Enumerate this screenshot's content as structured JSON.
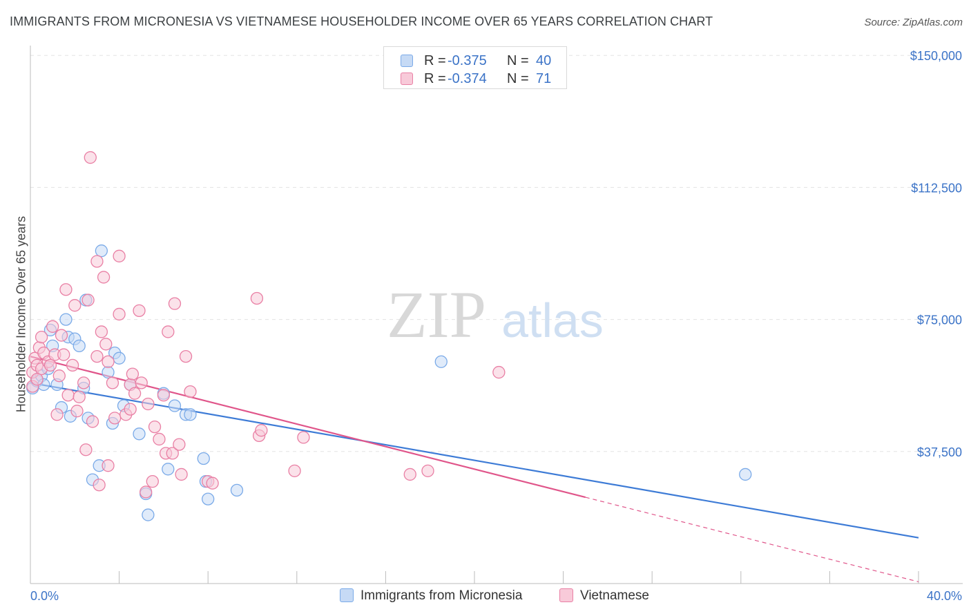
{
  "title": "IMMIGRANTS FROM MICRONESIA VS VIETNAMESE HOUSEHOLDER INCOME OVER 65 YEARS CORRELATION CHART",
  "source": "Source: ZipAtlas.com",
  "watermark": {
    "zip": "ZIP",
    "atlas": "atlas"
  },
  "legend": {
    "series": [
      {
        "name": "Immigrants from Micronesia",
        "r_label": "R =",
        "r_value": "-0.375",
        "n_label": "N =",
        "n_value": "40",
        "color": "#7aaae8",
        "fill": "#c6daf5"
      },
      {
        "name": "Vietnamese",
        "r_label": "R =",
        "r_value": "-0.374",
        "n_label": "N =",
        "n_value": "71",
        "color": "#e97fa4",
        "fill": "#f8cad9"
      }
    ]
  },
  "chart_data": {
    "type": "scatter",
    "title": "IMMIGRANTS FROM MICRONESIA VS VIETNAMESE HOUSEHOLDER INCOME OVER 65 YEARS CORRELATION CHART",
    "xlabel": "",
    "ylabel": "Householder Income Over 65 years",
    "xlim": [
      0,
      40
    ],
    "ylim": [
      0,
      152000
    ],
    "x_tick_labels": [
      "0.0%",
      "40.0%"
    ],
    "y_ticks": [
      37500,
      75000,
      112500,
      150000
    ],
    "y_tick_labels": [
      "$37,500",
      "$75,000",
      "$112,500",
      "$150,000"
    ],
    "grid": true,
    "series": [
      {
        "name": "Immigrants from Micronesia",
        "color": "#3d7bd6",
        "points": [
          [
            0.1,
            55500
          ],
          [
            0.3,
            57500
          ],
          [
            0.5,
            59000
          ],
          [
            0.6,
            56500
          ],
          [
            0.8,
            61000
          ],
          [
            0.9,
            72000
          ],
          [
            1.0,
            67500
          ],
          [
            1.2,
            56500
          ],
          [
            1.4,
            50000
          ],
          [
            1.6,
            75000
          ],
          [
            1.7,
            70000
          ],
          [
            1.8,
            47500
          ],
          [
            2.0,
            69500
          ],
          [
            2.2,
            67500
          ],
          [
            2.4,
            55500
          ],
          [
            2.5,
            80500
          ],
          [
            2.6,
            47000
          ],
          [
            2.8,
            29500
          ],
          [
            3.1,
            33500
          ],
          [
            3.2,
            94500
          ],
          [
            3.5,
            60000
          ],
          [
            3.7,
            45500
          ],
          [
            3.8,
            65500
          ],
          [
            4.0,
            64000
          ],
          [
            4.2,
            50500
          ],
          [
            4.5,
            56500
          ],
          [
            4.9,
            42500
          ],
          [
            5.2,
            25500
          ],
          [
            5.3,
            19500
          ],
          [
            6.0,
            54000
          ],
          [
            6.2,
            32500
          ],
          [
            6.5,
            50500
          ],
          [
            7.0,
            48000
          ],
          [
            7.2,
            48000
          ],
          [
            7.8,
            35500
          ],
          [
            7.9,
            29000
          ],
          [
            8.0,
            24000
          ],
          [
            9.3,
            26500
          ],
          [
            18.5,
            63000
          ],
          [
            32.2,
            31000
          ]
        ],
        "trend": {
          "x": [
            0,
            40
          ],
          "y": [
            57000,
            13000
          ]
        }
      },
      {
        "name": "Vietnamese",
        "color": "#e0558a",
        "points": [
          [
            0.1,
            60000
          ],
          [
            0.1,
            56000
          ],
          [
            0.2,
            64000
          ],
          [
            0.3,
            62000
          ],
          [
            0.4,
            67000
          ],
          [
            0.5,
            70000
          ],
          [
            0.5,
            61000
          ],
          [
            0.6,
            65500
          ],
          [
            0.8,
            63000
          ],
          [
            0.9,
            62000
          ],
          [
            1.0,
            73000
          ],
          [
            1.1,
            65000
          ],
          [
            1.2,
            48000
          ],
          [
            1.3,
            59000
          ],
          [
            1.4,
            70500
          ],
          [
            1.5,
            65000
          ],
          [
            1.6,
            83500
          ],
          [
            1.7,
            53500
          ],
          [
            1.9,
            62000
          ],
          [
            2.0,
            79000
          ],
          [
            2.1,
            49000
          ],
          [
            2.2,
            53000
          ],
          [
            2.4,
            57000
          ],
          [
            2.5,
            38000
          ],
          [
            2.6,
            80500
          ],
          [
            2.7,
            121000
          ],
          [
            2.8,
            46000
          ],
          [
            3.0,
            91500
          ],
          [
            3.0,
            64500
          ],
          [
            3.1,
            28000
          ],
          [
            3.2,
            71500
          ],
          [
            3.3,
            87000
          ],
          [
            3.4,
            68000
          ],
          [
            3.5,
            33500
          ],
          [
            3.5,
            63000
          ],
          [
            3.7,
            57000
          ],
          [
            3.8,
            47000
          ],
          [
            4.0,
            76500
          ],
          [
            4.0,
            93000
          ],
          [
            4.3,
            48000
          ],
          [
            4.5,
            56500
          ],
          [
            4.5,
            49500
          ],
          [
            4.6,
            59500
          ],
          [
            4.7,
            54000
          ],
          [
            4.9,
            77500
          ],
          [
            5.0,
            57000
          ],
          [
            5.2,
            26000
          ],
          [
            5.3,
            51000
          ],
          [
            5.5,
            29000
          ],
          [
            5.6,
            44500
          ],
          [
            5.8,
            41000
          ],
          [
            6.0,
            53500
          ],
          [
            6.1,
            37000
          ],
          [
            6.2,
            71500
          ],
          [
            6.4,
            37000
          ],
          [
            6.5,
            79500
          ],
          [
            6.7,
            39500
          ],
          [
            6.8,
            31000
          ],
          [
            7.0,
            64500
          ],
          [
            7.2,
            54500
          ],
          [
            8.0,
            29000
          ],
          [
            8.2,
            28500
          ],
          [
            10.2,
            81000
          ],
          [
            10.3,
            42000
          ],
          [
            10.4,
            43500
          ],
          [
            11.9,
            32000
          ],
          [
            12.3,
            41500
          ],
          [
            17.1,
            31000
          ],
          [
            17.9,
            32000
          ],
          [
            21.1,
            60000
          ],
          [
            0.3,
            58000
          ]
        ],
        "trend": {
          "x": [
            0,
            25
          ],
          "y": [
            64500,
            24500
          ]
        },
        "trend_dashed": {
          "x": [
            25,
            40
          ],
          "y": [
            24500,
            500
          ]
        }
      }
    ]
  }
}
